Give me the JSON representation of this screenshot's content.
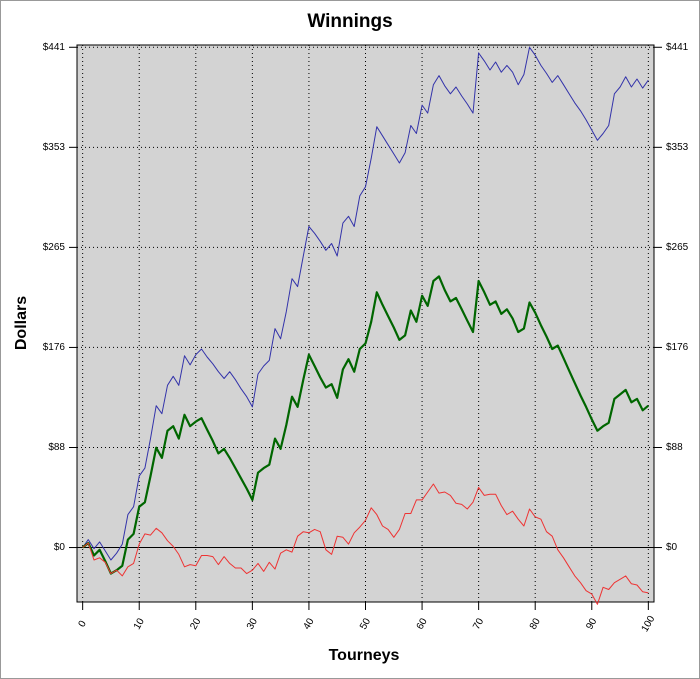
{
  "chart_data": {
    "type": "line",
    "title": "Winnings",
    "xlabel": "Tourneys",
    "ylabel": "Dollars",
    "x": [
      0,
      1,
      2,
      3,
      4,
      5,
      6,
      7,
      8,
      9,
      10,
      11,
      12,
      13,
      14,
      15,
      16,
      17,
      18,
      19,
      20,
      21,
      22,
      23,
      24,
      25,
      26,
      27,
      28,
      29,
      30,
      31,
      32,
      33,
      34,
      35,
      36,
      37,
      38,
      39,
      40,
      41,
      42,
      43,
      44,
      45,
      46,
      47,
      48,
      49,
      50,
      51,
      52,
      53,
      54,
      55,
      56,
      57,
      58,
      59,
      60,
      61,
      62,
      63,
      64,
      65,
      66,
      67,
      68,
      69,
      70,
      71,
      72,
      73,
      74,
      75,
      76,
      77,
      78,
      79,
      80,
      81,
      82,
      83,
      84,
      85,
      86,
      87,
      88,
      89,
      90,
      91,
      92,
      93,
      94,
      95,
      96,
      97,
      98,
      99,
      100
    ],
    "series": [
      {
        "color": "#3333aa",
        "width": 1,
        "values": [
          0,
          7,
          -1,
          5,
          -3,
          -11,
          -5,
          3,
          29,
          36,
          63,
          70,
          96,
          125,
          118,
          143,
          151,
          143,
          169,
          161,
          170,
          175,
          168,
          162,
          155,
          149,
          155,
          148,
          140,
          133,
          124,
          153,
          160,
          165,
          193,
          184,
          208,
          237,
          230,
          257,
          283,
          277,
          270,
          262,
          268,
          257,
          286,
          292,
          283,
          310,
          318,
          343,
          371,
          363,
          355,
          347,
          339,
          348,
          372,
          365,
          390,
          383,
          408,
          416,
          407,
          400,
          406,
          398,
          391,
          383,
          436,
          429,
          421,
          428,
          419,
          425,
          419,
          408,
          417,
          441,
          434,
          425,
          418,
          410,
          416,
          408,
          400,
          392,
          385,
          377,
          368,
          359,
          365,
          372,
          400,
          406,
          415,
          406,
          413,
          405,
          412
        ]
      },
      {
        "color": "#006600",
        "width": 2.2,
        "values": [
          0,
          4,
          -7,
          -2,
          -12,
          -23,
          -20,
          -16,
          7,
          12,
          36,
          40,
          63,
          88,
          79,
          103,
          107,
          96,
          117,
          107,
          111,
          114,
          104,
          94,
          83,
          87,
          79,
          70,
          61,
          52,
          42,
          66,
          70,
          73,
          96,
          87,
          108,
          133,
          124,
          148,
          170,
          160,
          150,
          141,
          144,
          132,
          157,
          166,
          155,
          175,
          180,
          199,
          225,
          214,
          204,
          194,
          183,
          187,
          209,
          199,
          222,
          213,
          235,
          239,
          227,
          217,
          220,
          210,
          200,
          190,
          235,
          225,
          214,
          217,
          206,
          210,
          202,
          190,
          193,
          216,
          207,
          196,
          186,
          175,
          178,
          167,
          156,
          145,
          134,
          124,
          113,
          103,
          107,
          110,
          131,
          135,
          139,
          128,
          131,
          121,
          125
        ]
      },
      {
        "color": "#ee3333",
        "width": 1,
        "values": [
          0,
          4,
          -11,
          -9,
          -13,
          -23,
          -20,
          -25,
          -17,
          -14,
          3,
          12,
          11,
          17,
          13,
          6,
          1,
          -6,
          -17,
          -15,
          -16,
          -7,
          -7,
          -8,
          -15,
          -8,
          -14,
          -18,
          -18,
          -23,
          -20,
          -14,
          -21,
          -13,
          -19,
          -5,
          -2,
          -4,
          10,
          14,
          13,
          16,
          14,
          -2,
          -6,
          10,
          9,
          3,
          13,
          18,
          24,
          35,
          29,
          19,
          16,
          9,
          16,
          30,
          30,
          42,
          42,
          49,
          56,
          48,
          49,
          46,
          39,
          38,
          34,
          40,
          53,
          46,
          47,
          47,
          37,
          29,
          32,
          25,
          19,
          34,
          27,
          25,
          14,
          10,
          -2,
          -9,
          -17,
          -25,
          -31,
          -38,
          -41,
          -50,
          -35,
          -37,
          -31,
          -28,
          -25,
          -32,
          -33,
          -39,
          -40
        ]
      }
    ],
    "xlim": [
      -1,
      101
    ],
    "xticks": [
      0,
      10,
      20,
      30,
      40,
      50,
      60,
      70,
      80,
      90,
      100
    ],
    "ylim": [
      -48,
      443
    ],
    "yticks": [
      {
        "value": 0,
        "label": "$0"
      },
      {
        "value": 88.2,
        "label": "$88"
      },
      {
        "value": 176.4,
        "label": "$176"
      },
      {
        "value": 264.6,
        "label": "$265"
      },
      {
        "value": 352.8,
        "label": "$353"
      },
      {
        "value": 441,
        "label": "$441"
      }
    ],
    "grid": true,
    "plot_color": "#d3d3d3"
  }
}
